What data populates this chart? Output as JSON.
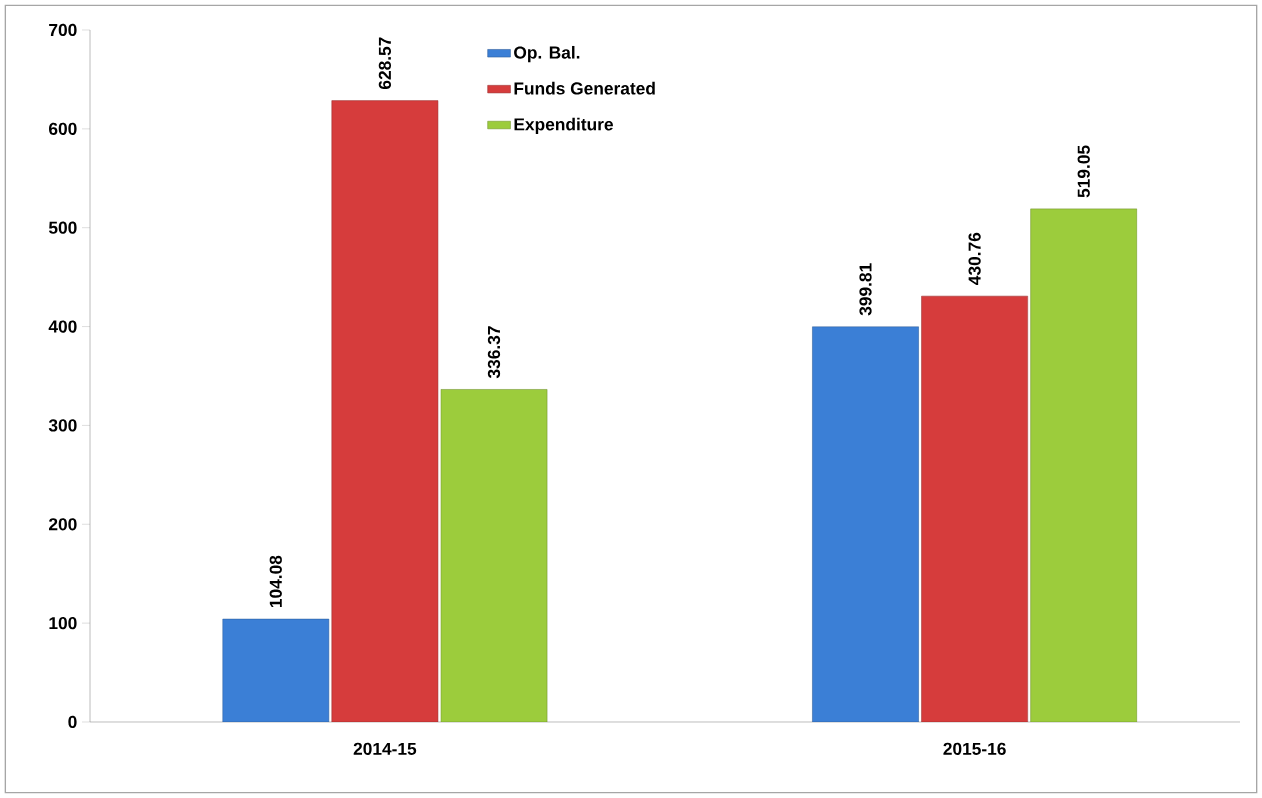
{
  "chart_data": {
    "type": "bar",
    "categories": [
      "2014-15",
      "2015-16"
    ],
    "series": [
      {
        "name": "Op. Bal.",
        "color": "#3b7fd6",
        "values": [
          104.08,
          399.81
        ]
      },
      {
        "name": "Funds Generated",
        "color": "#d63c3c",
        "values": [
          628.57,
          430.76
        ]
      },
      {
        "name": "Expenditure",
        "color": "#9ccc3c",
        "values": [
          336.37,
          519.05
        ]
      }
    ],
    "ylim": [
      0,
      700
    ],
    "yticks": [
      0,
      100,
      200,
      300,
      400,
      500,
      600,
      700
    ],
    "data_labels": true,
    "legend": "top",
    "grid": false
  }
}
